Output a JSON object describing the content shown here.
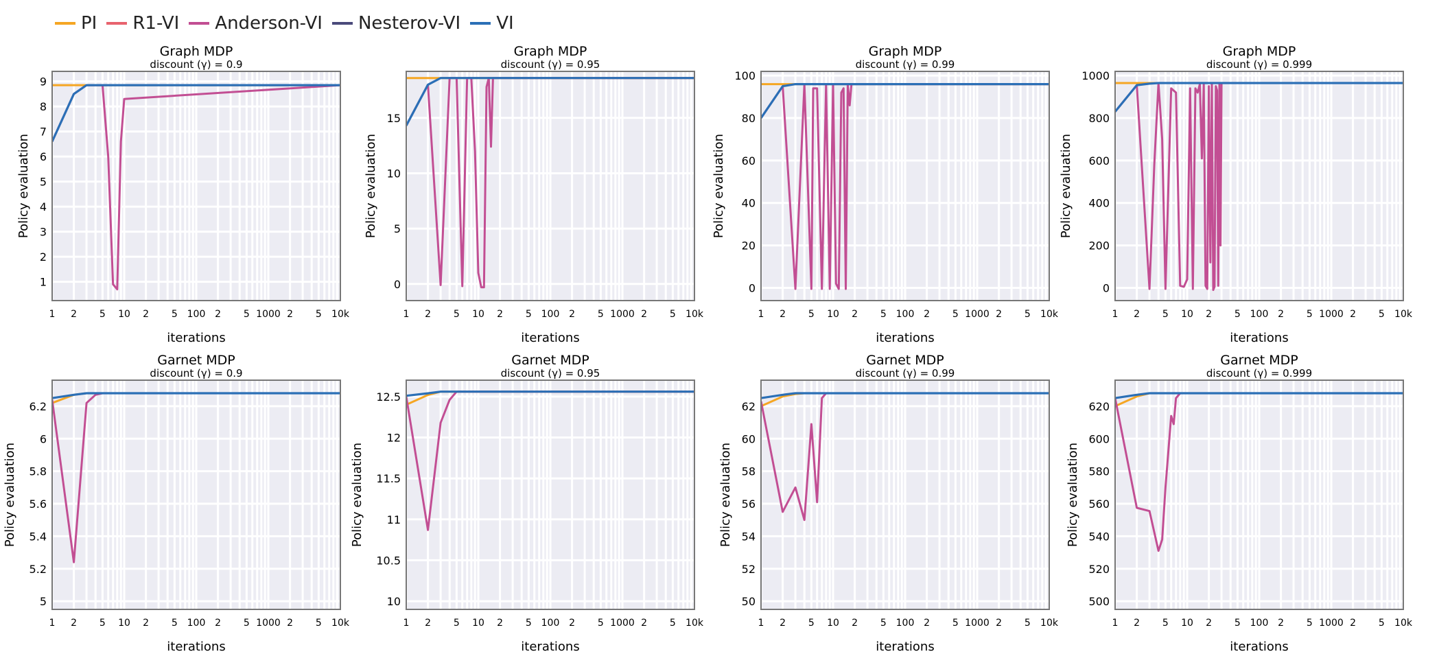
{
  "legend": {
    "items": [
      {
        "name": "PI",
        "color": "#F5A623"
      },
      {
        "name": "R1-VI",
        "color": "#E8636E"
      },
      {
        "name": "Anderson-VI",
        "color": "#C24E93"
      },
      {
        "name": "Nesterov-VI",
        "color": "#4B4A7B"
      },
      {
        "name": "VI",
        "color": "#2B6FB6"
      }
    ]
  },
  "chart_data": [
    {
      "type": "line",
      "title": "Graph MDP",
      "subtitle": "discount (γ) = 0.9",
      "xlabel": "iterations",
      "ylabel": "Policy evaluation",
      "xscale": "log",
      "xlim": [
        1,
        10000
      ],
      "ylim": [
        0.25,
        9.4
      ],
      "yticks": [
        1,
        2,
        3,
        4,
        5,
        6,
        7,
        8,
        9
      ],
      "yticklabels": [
        "1",
        "2",
        "3",
        "4",
        "5",
        "6",
        "7",
        "8",
        "9"
      ],
      "series": [
        {
          "name": "PI",
          "color": "#F5A623",
          "x": [
            1,
            10000
          ],
          "y": [
            8.85,
            8.85
          ]
        },
        {
          "name": "Anderson-VI",
          "color": "#C24E93",
          "x": [
            1,
            2,
            3,
            5,
            6,
            7,
            8,
            9,
            10,
            10000
          ],
          "y": [
            6.6,
            8.5,
            8.85,
            8.85,
            6.0,
            0.9,
            0.7,
            6.6,
            8.3,
            8.85
          ]
        },
        {
          "name": "VI",
          "color": "#2B6FB6",
          "x": [
            1,
            2,
            3,
            10000
          ],
          "y": [
            6.6,
            8.5,
            8.85,
            8.85
          ]
        }
      ]
    },
    {
      "type": "line",
      "title": "Graph MDP",
      "subtitle": "discount (γ) = 0.95",
      "xlabel": "iterations",
      "ylabel": "Policy evaluation",
      "xscale": "log",
      "xlim": [
        1,
        10000
      ],
      "ylim": [
        -1.5,
        19.2
      ],
      "yticks": [
        0,
        5,
        10,
        15
      ],
      "yticklabels": [
        "0",
        "5",
        "10",
        "15"
      ],
      "series": [
        {
          "name": "PI",
          "color": "#F5A623",
          "x": [
            1,
            10000
          ],
          "y": [
            18.6,
            18.6
          ]
        },
        {
          "name": "Anderson-VI",
          "color": "#C24E93",
          "x": [
            1,
            2,
            3,
            4,
            5,
            6,
            7,
            8,
            9,
            10,
            11,
            12,
            13,
            14,
            15,
            16,
            10000
          ],
          "y": [
            14.3,
            18.0,
            -0.1,
            18.6,
            18.6,
            -0.2,
            18.6,
            18.6,
            12.0,
            1.0,
            -0.3,
            -0.3,
            17.8,
            18.6,
            12.4,
            18.6,
            18.6
          ]
        },
        {
          "name": "VI",
          "color": "#2B6FB6",
          "x": [
            1,
            2,
            3,
            10000
          ],
          "y": [
            14.3,
            18.0,
            18.6,
            18.6
          ]
        }
      ]
    },
    {
      "type": "line",
      "title": "Graph MDP",
      "subtitle": "discount (γ) = 0.99",
      "xlabel": "iterations",
      "ylabel": "Policy evaluation",
      "xscale": "log",
      "xlim": [
        1,
        10000
      ],
      "ylim": [
        -6,
        102
      ],
      "yticks": [
        0,
        20,
        40,
        60,
        80,
        100
      ],
      "yticklabels": [
        "0",
        "20",
        "40",
        "60",
        "80",
        "100"
      ],
      "series": [
        {
          "name": "PI",
          "color": "#F5A623",
          "x": [
            1,
            10000
          ],
          "y": [
            96,
            96
          ]
        },
        {
          "name": "Anderson-VI",
          "color": "#C24E93",
          "x": [
            1,
            2,
            3,
            4,
            5,
            5.3,
            6,
            7,
            8,
            9,
            10,
            11,
            12,
            13,
            14,
            15,
            16,
            17,
            18,
            10000
          ],
          "y": [
            80,
            95,
            -0.5,
            96,
            -0.5,
            94,
            94,
            -0.5,
            96,
            -0.5,
            96,
            2,
            -0.5,
            92,
            94,
            -0.5,
            96,
            86,
            96,
            96
          ]
        },
        {
          "name": "VI",
          "color": "#2B6FB6",
          "x": [
            1,
            2,
            3,
            4,
            10000
          ],
          "y": [
            80,
            95,
            96,
            96,
            96
          ]
        }
      ]
    },
    {
      "type": "line",
      "title": "Graph MDP",
      "subtitle": "discount (γ) = 0.999",
      "xlabel": "iterations",
      "ylabel": "Policy evaluation",
      "xscale": "log",
      "xlim": [
        1,
        10000
      ],
      "ylim": [
        -60,
        1020
      ],
      "yticks": [
        0,
        200,
        400,
        600,
        800,
        1000
      ],
      "yticklabels": [
        "0",
        "200",
        "400",
        "600",
        "800",
        "1000"
      ],
      "series": [
        {
          "name": "PI",
          "color": "#F5A623",
          "x": [
            1,
            10000
          ],
          "y": [
            965,
            965
          ]
        },
        {
          "name": "Anderson-VI",
          "color": "#C24E93",
          "x": [
            1,
            2,
            3,
            3.5,
            4,
            4.5,
            5,
            6,
            7,
            8,
            9,
            10,
            11,
            12,
            13,
            14,
            15,
            16,
            17,
            18,
            19,
            20,
            21,
            22,
            23,
            24,
            25,
            26,
            27,
            28,
            29,
            30,
            10000
          ],
          "y": [
            830,
            955,
            -5,
            580,
            965,
            700,
            -5,
            940,
            920,
            10,
            5,
            40,
            940,
            -5,
            940,
            920,
            960,
            610,
            960,
            10,
            -5,
            950,
            120,
            960,
            -10,
            5,
            950,
            930,
            10,
            960,
            200,
            965,
            965
          ]
        },
        {
          "name": "VI",
          "color": "#2B6FB6",
          "x": [
            1,
            2,
            3,
            4,
            10000
          ],
          "y": [
            830,
            955,
            962,
            965,
            965
          ]
        }
      ]
    },
    {
      "type": "line",
      "title": "Garnet MDP",
      "subtitle": "discount (γ) = 0.9",
      "xlabel": "iterations",
      "ylabel": "Policy evaluation",
      "xscale": "log",
      "xlim": [
        1,
        10000
      ],
      "ylim": [
        4.95,
        6.36
      ],
      "yticks": [
        5,
        5.2,
        5.4,
        5.6,
        5.8,
        6,
        6.2
      ],
      "yticklabels": [
        "5",
        "5.2",
        "5.4",
        "5.6",
        "5.8",
        "6",
        "6.2"
      ],
      "series": [
        {
          "name": "PI",
          "color": "#F5A623",
          "x": [
            1,
            2,
            3,
            10000
          ],
          "y": [
            6.22,
            6.27,
            6.28,
            6.28
          ]
        },
        {
          "name": "Anderson-VI",
          "color": "#C24E93",
          "x": [
            1,
            2,
            3,
            4,
            5,
            10000
          ],
          "y": [
            6.24,
            5.24,
            6.22,
            6.27,
            6.28,
            6.28
          ]
        },
        {
          "name": "VI",
          "color": "#2B6FB6",
          "x": [
            1,
            2,
            3,
            4,
            10000
          ],
          "y": [
            6.25,
            6.27,
            6.28,
            6.28,
            6.28
          ]
        }
      ]
    },
    {
      "type": "line",
      "title": "Garnet MDP",
      "subtitle": "discount (γ) = 0.95",
      "xlabel": "iterations",
      "ylabel": "Policy evaluation",
      "xscale": "log",
      "xlim": [
        1,
        10000
      ],
      "ylim": [
        9.9,
        12.7
      ],
      "yticks": [
        10,
        10.5,
        11,
        11.5,
        12,
        12.5
      ],
      "yticklabels": [
        "10",
        "10.5",
        "11",
        "11.5",
        "12",
        "12.5"
      ],
      "series": [
        {
          "name": "PI",
          "color": "#F5A623",
          "x": [
            1,
            2,
            3,
            10000
          ],
          "y": [
            12.4,
            12.52,
            12.56,
            12.56
          ]
        },
        {
          "name": "Anderson-VI",
          "color": "#C24E93",
          "x": [
            1,
            2,
            3,
            4,
            5,
            10000
          ],
          "y": [
            12.5,
            10.87,
            12.18,
            12.46,
            12.56,
            12.56
          ]
        },
        {
          "name": "VI",
          "color": "#2B6FB6",
          "x": [
            1,
            2,
            3,
            4,
            10000
          ],
          "y": [
            12.51,
            12.54,
            12.56,
            12.56,
            12.56
          ]
        }
      ]
    },
    {
      "type": "line",
      "title": "Garnet MDP",
      "subtitle": "discount (γ) = 0.99",
      "xlabel": "iterations",
      "ylabel": "Policy evaluation",
      "xscale": "log",
      "xlim": [
        1,
        10000
      ],
      "ylim": [
        49.5,
        63.6
      ],
      "yticks": [
        50,
        52,
        54,
        56,
        58,
        60,
        62
      ],
      "yticklabels": [
        "50",
        "52",
        "54",
        "56",
        "58",
        "60",
        "62"
      ],
      "series": [
        {
          "name": "PI",
          "color": "#F5A623",
          "x": [
            1,
            2,
            3,
            4,
            10000
          ],
          "y": [
            62.0,
            62.6,
            62.75,
            62.8,
            62.8
          ]
        },
        {
          "name": "Anderson-VI",
          "color": "#C24E93",
          "x": [
            1,
            2,
            3,
            4,
            5,
            6,
            7,
            8,
            10000
          ],
          "y": [
            62.3,
            55.5,
            57.0,
            55.0,
            60.9,
            56.1,
            62.5,
            62.8,
            62.8
          ]
        },
        {
          "name": "VI",
          "color": "#2B6FB6",
          "x": [
            1,
            2,
            3,
            5,
            10000
          ],
          "y": [
            62.5,
            62.7,
            62.8,
            62.8,
            62.8
          ]
        }
      ]
    },
    {
      "type": "line",
      "title": "Garnet MDP",
      "subtitle": "discount (γ) = 0.999",
      "xlabel": "iterations",
      "ylabel": "Policy evaluation",
      "xscale": "log",
      "xlim": [
        1,
        10000
      ],
      "ylim": [
        495,
        636
      ],
      "yticks": [
        500,
        520,
        540,
        560,
        580,
        600,
        620
      ],
      "yticklabels": [
        "500",
        "520",
        "540",
        "560",
        "580",
        "600",
        "620"
      ],
      "series": [
        {
          "name": "PI",
          "color": "#F5A623",
          "x": [
            1,
            2,
            3,
            10000
          ],
          "y": [
            620,
            626,
            628,
            628
          ]
        },
        {
          "name": "Anderson-VI",
          "color": "#C24E93",
          "x": [
            1,
            2,
            3,
            4,
            4.5,
            5,
            6,
            6.5,
            7,
            8,
            9,
            10000
          ],
          "y": [
            625,
            557.5,
            555.5,
            531,
            538,
            570,
            614,
            609,
            625,
            628,
            628,
            628
          ]
        },
        {
          "name": "VI",
          "color": "#2B6FB6",
          "x": [
            1,
            2,
            3,
            4,
            5,
            10000
          ],
          "y": [
            625,
            627,
            628,
            628,
            628,
            628
          ]
        }
      ]
    }
  ],
  "xaxis": {
    "minor_ticks": [
      {
        "value": 1,
        "label": "1"
      },
      {
        "value": 2,
        "label": "2"
      },
      {
        "value": 5,
        "label": "5"
      },
      {
        "value": 10,
        "label": "10"
      },
      {
        "value": 20,
        "label": "2"
      },
      {
        "value": 50,
        "label": "5"
      },
      {
        "value": 100,
        "label": "100"
      },
      {
        "value": 200,
        "label": "2"
      },
      {
        "value": 500,
        "label": "5"
      },
      {
        "value": 1000,
        "label": "1000"
      },
      {
        "value": 2000,
        "label": "2"
      },
      {
        "value": 5000,
        "label": "5"
      },
      {
        "value": 10000,
        "label": "10k"
      }
    ]
  }
}
